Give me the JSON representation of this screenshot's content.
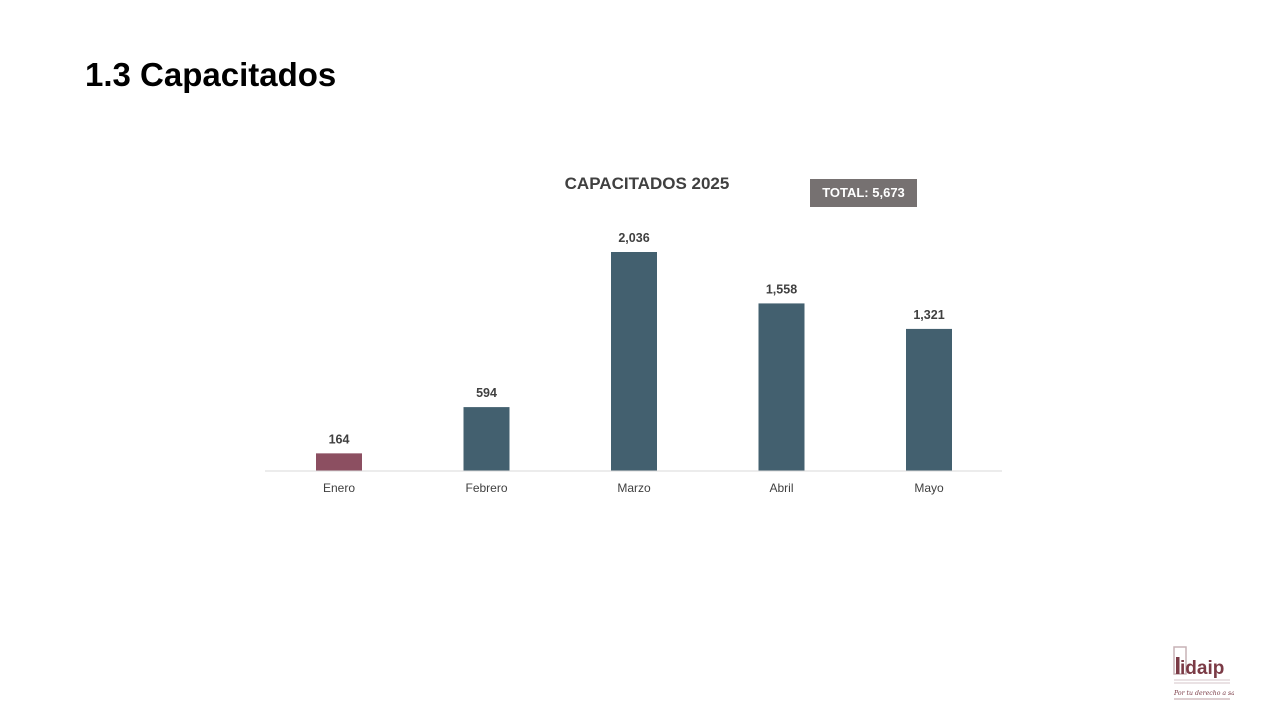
{
  "slide": {
    "title": "1.3 Capacitados"
  },
  "badge": {
    "text": "TOTAL: 5,673",
    "color": "#767171"
  },
  "logo": {
    "wordmark": "idaip",
    "tagline": "Por tu derecho a saber",
    "color": "#7b3b46"
  },
  "colors": {
    "highlight_bar": "#8c4f61",
    "default_bar": "#43606f",
    "axis_line": "#d9d9d9"
  },
  "chart_data": {
    "type": "bar",
    "title": "CAPACITADOS 2025",
    "categories": [
      "Enero",
      "Febrero",
      "Marzo",
      "Abril",
      "Mayo"
    ],
    "values": [
      164,
      594,
      2036,
      1558,
      1321
    ],
    "value_labels": [
      "164",
      "594",
      "2,036",
      "1,558",
      "1,321"
    ],
    "bar_colors": [
      "#8c4f61",
      "#43606f",
      "#43606f",
      "#43606f",
      "#43606f"
    ],
    "ylim": [
      0,
      2036
    ],
    "xlabel": "",
    "ylabel": "",
    "grid": false,
    "legend": "none"
  }
}
